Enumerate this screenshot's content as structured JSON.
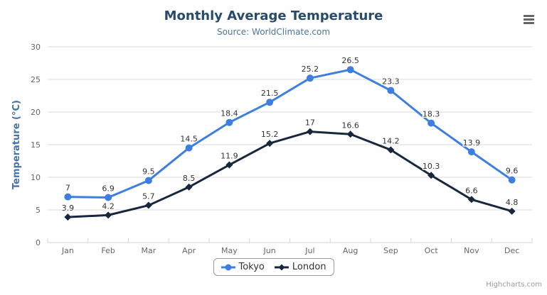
{
  "header": {
    "title": "Monthly Average Temperature",
    "subtitle": "Source: WorldClimate.com"
  },
  "legend": {
    "items": [
      {
        "label": "Tokyo",
        "marker": "circle",
        "color": "#3d7ee0"
      },
      {
        "label": "London",
        "marker": "diamond",
        "color": "#17273d"
      }
    ]
  },
  "credits": {
    "label": "Highcharts.com"
  },
  "colors": {
    "title": "#274b6d",
    "subtitle": "#4d759e",
    "axis_title": "#4572a7",
    "axis_labels": "#666666",
    "data_labels": "#333333",
    "gridline": "#d8d8d8",
    "axis_line": "#ccd6eb",
    "export_icon": "#666666"
  },
  "chart_data": {
    "type": "line",
    "title": "Monthly Average Temperature",
    "subtitle": "Source: WorldClimate.com",
    "categories": [
      "Jan",
      "Feb",
      "Mar",
      "Apr",
      "May",
      "Jun",
      "Jul",
      "Aug",
      "Sep",
      "Oct",
      "Nov",
      "Dec"
    ],
    "series": [
      {
        "name": "Tokyo",
        "color": "#3d7ee0",
        "marker": "circle",
        "values": [
          7,
          6.9,
          9.5,
          14.5,
          18.4,
          21.5,
          25.2,
          26.5,
          23.3,
          18.3,
          13.9,
          9.6
        ]
      },
      {
        "name": "London",
        "color": "#17273d",
        "marker": "diamond",
        "values": [
          3.9,
          4.2,
          5.7,
          8.5,
          11.9,
          15.2,
          17,
          16.6,
          14.2,
          10.3,
          6.6,
          4.8
        ]
      }
    ],
    "xlabel": "",
    "ylabel": "Temperature (°C)",
    "ylim": [
      0,
      30
    ],
    "yticks": [
      0,
      5,
      10,
      15,
      20,
      25,
      30
    ],
    "grid": true,
    "data_labels_shown": true,
    "legend_position": "bottom"
  }
}
